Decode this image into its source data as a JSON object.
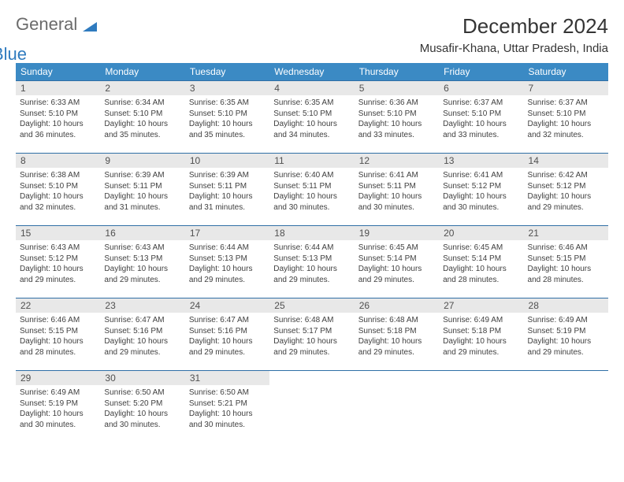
{
  "logo": {
    "text1": "General",
    "text2": "Blue"
  },
  "title": "December 2024",
  "location": "Musafir-Khana, Uttar Pradesh, India",
  "colors": {
    "header_bg": "#3b8ac4",
    "header_text": "#ffffff",
    "daynum_bg": "#e8e8e8",
    "border": "#2f6fa6",
    "body": "#ffffff",
    "text": "#404040",
    "logo_gray": "#6b6b6b",
    "logo_blue": "#2f7bbf"
  },
  "day_headers": [
    "Sunday",
    "Monday",
    "Tuesday",
    "Wednesday",
    "Thursday",
    "Friday",
    "Saturday"
  ],
  "weeks": [
    [
      {
        "n": "1",
        "sr": "6:33 AM",
        "ss": "5:10 PM",
        "dl": "10 hours and 36 minutes."
      },
      {
        "n": "2",
        "sr": "6:34 AM",
        "ss": "5:10 PM",
        "dl": "10 hours and 35 minutes."
      },
      {
        "n": "3",
        "sr": "6:35 AM",
        "ss": "5:10 PM",
        "dl": "10 hours and 35 minutes."
      },
      {
        "n": "4",
        "sr": "6:35 AM",
        "ss": "5:10 PM",
        "dl": "10 hours and 34 minutes."
      },
      {
        "n": "5",
        "sr": "6:36 AM",
        "ss": "5:10 PM",
        "dl": "10 hours and 33 minutes."
      },
      {
        "n": "6",
        "sr": "6:37 AM",
        "ss": "5:10 PM",
        "dl": "10 hours and 33 minutes."
      },
      {
        "n": "7",
        "sr": "6:37 AM",
        "ss": "5:10 PM",
        "dl": "10 hours and 32 minutes."
      }
    ],
    [
      {
        "n": "8",
        "sr": "6:38 AM",
        "ss": "5:10 PM",
        "dl": "10 hours and 32 minutes."
      },
      {
        "n": "9",
        "sr": "6:39 AM",
        "ss": "5:11 PM",
        "dl": "10 hours and 31 minutes."
      },
      {
        "n": "10",
        "sr": "6:39 AM",
        "ss": "5:11 PM",
        "dl": "10 hours and 31 minutes."
      },
      {
        "n": "11",
        "sr": "6:40 AM",
        "ss": "5:11 PM",
        "dl": "10 hours and 30 minutes."
      },
      {
        "n": "12",
        "sr": "6:41 AM",
        "ss": "5:11 PM",
        "dl": "10 hours and 30 minutes."
      },
      {
        "n": "13",
        "sr": "6:41 AM",
        "ss": "5:12 PM",
        "dl": "10 hours and 30 minutes."
      },
      {
        "n": "14",
        "sr": "6:42 AM",
        "ss": "5:12 PM",
        "dl": "10 hours and 29 minutes."
      }
    ],
    [
      {
        "n": "15",
        "sr": "6:43 AM",
        "ss": "5:12 PM",
        "dl": "10 hours and 29 minutes."
      },
      {
        "n": "16",
        "sr": "6:43 AM",
        "ss": "5:13 PM",
        "dl": "10 hours and 29 minutes."
      },
      {
        "n": "17",
        "sr": "6:44 AM",
        "ss": "5:13 PM",
        "dl": "10 hours and 29 minutes."
      },
      {
        "n": "18",
        "sr": "6:44 AM",
        "ss": "5:13 PM",
        "dl": "10 hours and 29 minutes."
      },
      {
        "n": "19",
        "sr": "6:45 AM",
        "ss": "5:14 PM",
        "dl": "10 hours and 29 minutes."
      },
      {
        "n": "20",
        "sr": "6:45 AM",
        "ss": "5:14 PM",
        "dl": "10 hours and 28 minutes."
      },
      {
        "n": "21",
        "sr": "6:46 AM",
        "ss": "5:15 PM",
        "dl": "10 hours and 28 minutes."
      }
    ],
    [
      {
        "n": "22",
        "sr": "6:46 AM",
        "ss": "5:15 PM",
        "dl": "10 hours and 28 minutes."
      },
      {
        "n": "23",
        "sr": "6:47 AM",
        "ss": "5:16 PM",
        "dl": "10 hours and 29 minutes."
      },
      {
        "n": "24",
        "sr": "6:47 AM",
        "ss": "5:16 PM",
        "dl": "10 hours and 29 minutes."
      },
      {
        "n": "25",
        "sr": "6:48 AM",
        "ss": "5:17 PM",
        "dl": "10 hours and 29 minutes."
      },
      {
        "n": "26",
        "sr": "6:48 AM",
        "ss": "5:18 PM",
        "dl": "10 hours and 29 minutes."
      },
      {
        "n": "27",
        "sr": "6:49 AM",
        "ss": "5:18 PM",
        "dl": "10 hours and 29 minutes."
      },
      {
        "n": "28",
        "sr": "6:49 AM",
        "ss": "5:19 PM",
        "dl": "10 hours and 29 minutes."
      }
    ],
    [
      {
        "n": "29",
        "sr": "6:49 AM",
        "ss": "5:19 PM",
        "dl": "10 hours and 30 minutes."
      },
      {
        "n": "30",
        "sr": "6:50 AM",
        "ss": "5:20 PM",
        "dl": "10 hours and 30 minutes."
      },
      {
        "n": "31",
        "sr": "6:50 AM",
        "ss": "5:21 PM",
        "dl": "10 hours and 30 minutes."
      },
      null,
      null,
      null,
      null
    ]
  ],
  "labels": {
    "sunrise": "Sunrise:",
    "sunset": "Sunset:",
    "daylight": "Daylight:"
  }
}
